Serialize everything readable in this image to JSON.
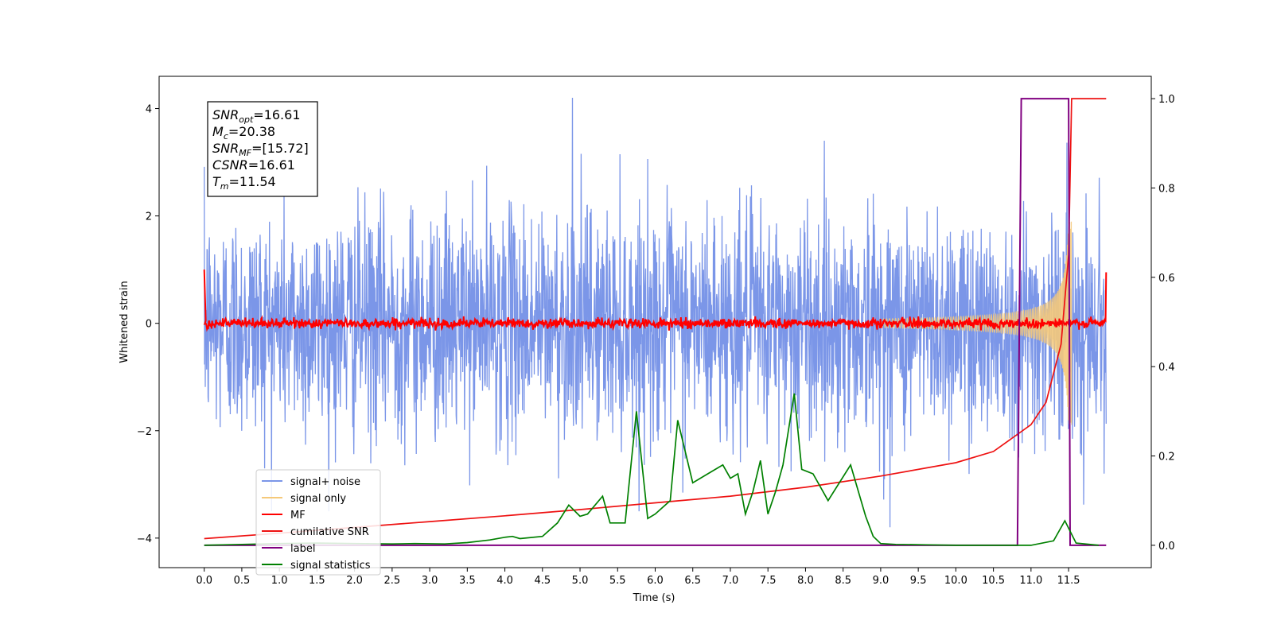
{
  "chart_data": {
    "type": "line",
    "xlabel": "Time (s)",
    "ylabel": "Whitened strain",
    "xlim": [
      -0.6,
      12.6
    ],
    "ylim": [
      -4.55,
      4.6
    ],
    "y2lim": [
      -0.05,
      1.05
    ],
    "x_ticks": [
      "0.0",
      "0.5",
      "1.0",
      "1.5",
      "2.0",
      "2.5",
      "3.0",
      "3.5",
      "4.0",
      "4.5",
      "5.0",
      "5.5",
      "6.0",
      "6.5",
      "7.0",
      "7.5",
      "8.0",
      "8.5",
      "9.0",
      "9.5",
      "10.0",
      "10.5",
      "11.0",
      "11.5"
    ],
    "y_ticks": [
      "4",
      "2",
      "0",
      "−2",
      "−4"
    ],
    "y2_ticks": [
      "1.0",
      "0.8",
      "0.6",
      "0.4",
      "0.2",
      "0.0"
    ],
    "info_box": {
      "lines": [
        {
          "main": "SNR",
          "sub": "opt",
          "rest": "=16.61"
        },
        {
          "main": "M",
          "sub": "c",
          "rest": "=20.38"
        },
        {
          "main": "SNR",
          "sub": "MF",
          "rest": "=[15.72]"
        },
        {
          "main": "CSNR",
          "sub": "",
          "rest": "=16.61"
        },
        {
          "main": "T",
          "sub": "m",
          "rest": "=11.54"
        }
      ]
    },
    "legend": {
      "location": "lower-left",
      "entries": [
        {
          "label": "signal+ noise",
          "color": "#7b96e8"
        },
        {
          "label": "signal only",
          "color": "#f5c97a"
        },
        {
          "label": "MF",
          "color": "#ff0000"
        },
        {
          "label": "cumilative SNR",
          "color": "#ee1111"
        },
        {
          "label": "label",
          "color": "#800080"
        },
        {
          "label": "signal statistics",
          "color": "#008000"
        }
      ]
    },
    "series": [
      {
        "name": "signal+ noise",
        "axis": "left",
        "color": "#7b96e8",
        "noise_sigma": 1.0,
        "peaks": {
          "max": 4.2,
          "min": -3.8
        },
        "t_range": [
          0.0,
          12.0
        ]
      },
      {
        "name": "signal only",
        "axis": "left",
        "color": "#f5c97a",
        "chirp_amplitude_at": [
          [
            10.0,
            0.05
          ],
          [
            11.0,
            0.35
          ],
          [
            11.5,
            1.8
          ]
        ],
        "t_merge": 11.54
      },
      {
        "name": "MF",
        "axis": "left",
        "color": "#ff0000",
        "level": 0.0,
        "ripple": 0.1,
        "edge_value": 1.0
      },
      {
        "name": "cumilative SNR",
        "axis": "right",
        "color": "#ee1111",
        "x": [
          0.0,
          1.0,
          2.0,
          3.0,
          4.0,
          5.0,
          6.0,
          7.0,
          8.0,
          9.0,
          10.0,
          10.5,
          11.0,
          11.2,
          11.4,
          11.5,
          11.54,
          11.6,
          12.0
        ],
        "y": [
          0.015,
          0.027,
          0.04,
          0.053,
          0.066,
          0.08,
          0.095,
          0.11,
          0.13,
          0.155,
          0.185,
          0.21,
          0.27,
          0.32,
          0.45,
          0.65,
          1.0,
          1.0,
          1.0
        ]
      },
      {
        "name": "label",
        "axis": "right",
        "color": "#800080",
        "x": [
          0.0,
          10.82,
          10.87,
          11.5,
          11.52,
          12.0
        ],
        "y": [
          0.0,
          0.0,
          1.0,
          1.0,
          0.0,
          0.0
        ]
      },
      {
        "name": "signal statistics",
        "axis": "right",
        "color": "#008000",
        "x": [
          0.0,
          0.5,
          1.0,
          1.5,
          2.0,
          2.5,
          2.8,
          3.2,
          3.5,
          3.8,
          4.0,
          4.1,
          4.2,
          4.5,
          4.7,
          4.85,
          5.0,
          5.1,
          5.3,
          5.4,
          5.6,
          5.75,
          5.9,
          6.0,
          6.2,
          6.3,
          6.5,
          6.7,
          6.9,
          7.0,
          7.1,
          7.2,
          7.3,
          7.4,
          7.5,
          7.6,
          7.7,
          7.85,
          7.95,
          8.1,
          8.3,
          8.6,
          8.8,
          8.9,
          9.0,
          9.2,
          9.6,
          10.0,
          11.0,
          11.3,
          11.45,
          11.6,
          11.9
        ],
        "y": [
          0.0,
          0.002,
          0.004,
          0.005,
          0.004,
          0.003,
          0.004,
          0.003,
          0.006,
          0.012,
          0.018,
          0.02,
          0.015,
          0.02,
          0.05,
          0.09,
          0.065,
          0.07,
          0.11,
          0.05,
          0.05,
          0.3,
          0.06,
          0.07,
          0.1,
          0.28,
          0.14,
          0.16,
          0.18,
          0.15,
          0.16,
          0.07,
          0.12,
          0.19,
          0.07,
          0.12,
          0.18,
          0.34,
          0.17,
          0.16,
          0.1,
          0.18,
          0.065,
          0.02,
          0.004,
          0.002,
          0.001,
          0.0,
          0.0,
          0.01,
          0.055,
          0.005,
          0.0
        ]
      }
    ]
  }
}
